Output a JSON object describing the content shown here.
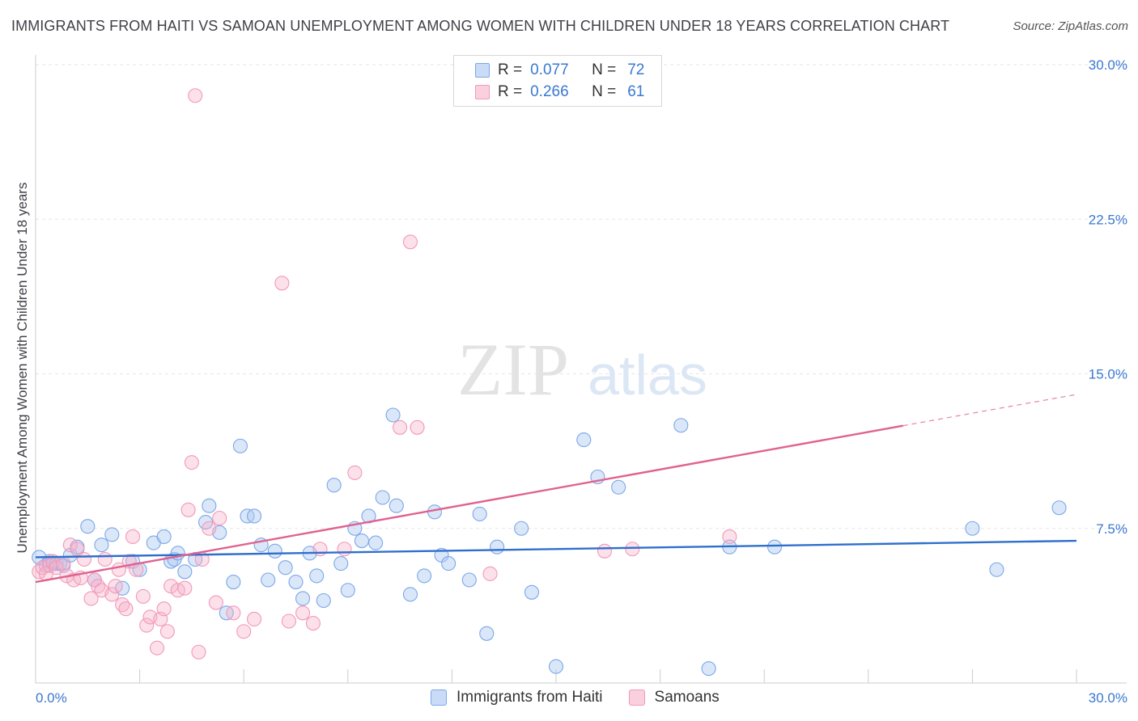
{
  "header": {
    "title": "IMMIGRANTS FROM HAITI VS SAMOAN UNEMPLOYMENT AMONG WOMEN WITH CHILDREN UNDER 18 YEARS CORRELATION CHART",
    "source": "Source: ZipAtlas.com"
  },
  "watermark": {
    "zip": "ZIP",
    "atlas": "atlas"
  },
  "legend": {
    "r_label": "R =",
    "n_label": "N =",
    "items": [
      {
        "name": "Immigrants from Haiti",
        "r": "0.077",
        "n": "72",
        "color": "#7ba7e8"
      },
      {
        "name": "Samoans",
        "r": "0.266",
        "n": "61",
        "color": "#f19ab8"
      }
    ]
  },
  "chart_data": {
    "type": "scatter",
    "title": "IMMIGRANTS FROM HAITI VS SAMOAN UNEMPLOYMENT AMONG WOMEN WITH CHILDREN UNDER 18 YEARS CORRELATION CHART",
    "xlabel": "",
    "ylabel": "Unemployment Among Women with Children Under 18 years",
    "xlim": [
      0,
      30
    ],
    "ylim": [
      0,
      30
    ],
    "x_tick_labels": [
      "0.0%",
      "30.0%"
    ],
    "y_ticks": [
      7.5,
      15.0,
      22.5,
      30.0
    ],
    "y_tick_labels": [
      "7.5%",
      "15.0%",
      "22.5%",
      "30.0%"
    ],
    "grid": true,
    "legend_position": "top-center",
    "series": [
      {
        "name": "Immigrants from Haiti",
        "color": "#7ba7e8",
        "line_color": "#2f6fcc",
        "trend": {
          "x": [
            0,
            30
          ],
          "y": [
            6.1,
            6.9
          ]
        },
        "points": [
          [
            0.1,
            6.1
          ],
          [
            0.3,
            5.7
          ],
          [
            0.4,
            5.9
          ],
          [
            0.5,
            5.8
          ],
          [
            0.6,
            5.8
          ],
          [
            0.7,
            5.8
          ],
          [
            0.8,
            5.7
          ],
          [
            1.0,
            6.2
          ],
          [
            1.2,
            6.6
          ],
          [
            1.5,
            7.6
          ],
          [
            1.7,
            5.0
          ],
          [
            1.9,
            6.7
          ],
          [
            2.2,
            7.2
          ],
          [
            2.5,
            4.6
          ],
          [
            2.8,
            5.9
          ],
          [
            3.0,
            5.5
          ],
          [
            3.4,
            6.8
          ],
          [
            3.7,
            7.1
          ],
          [
            3.9,
            5.9
          ],
          [
            4.0,
            6.0
          ],
          [
            4.1,
            6.3
          ],
          [
            4.3,
            5.4
          ],
          [
            4.6,
            6.0
          ],
          [
            4.9,
            7.8
          ],
          [
            5.0,
            8.6
          ],
          [
            5.3,
            7.3
          ],
          [
            5.5,
            3.4
          ],
          [
            5.7,
            4.9
          ],
          [
            5.9,
            11.5
          ],
          [
            6.1,
            8.1
          ],
          [
            6.3,
            8.1
          ],
          [
            6.5,
            6.7
          ],
          [
            6.7,
            5.0
          ],
          [
            6.9,
            6.4
          ],
          [
            7.2,
            5.6
          ],
          [
            7.5,
            4.9
          ],
          [
            7.7,
            4.1
          ],
          [
            7.9,
            6.3
          ],
          [
            8.1,
            5.2
          ],
          [
            8.3,
            4.0
          ],
          [
            8.6,
            9.6
          ],
          [
            8.8,
            5.8
          ],
          [
            9.0,
            4.5
          ],
          [
            9.2,
            7.5
          ],
          [
            9.4,
            6.9
          ],
          [
            9.6,
            8.1
          ],
          [
            9.8,
            6.8
          ],
          [
            10.0,
            9.0
          ],
          [
            10.3,
            13.0
          ],
          [
            10.4,
            8.6
          ],
          [
            10.8,
            4.3
          ],
          [
            11.2,
            5.2
          ],
          [
            11.5,
            8.3
          ],
          [
            11.7,
            6.2
          ],
          [
            11.9,
            5.8
          ],
          [
            12.5,
            5.0
          ],
          [
            12.8,
            8.2
          ],
          [
            13.0,
            2.4
          ],
          [
            13.3,
            6.6
          ],
          [
            14.0,
            7.5
          ],
          [
            14.3,
            4.4
          ],
          [
            15.0,
            0.8
          ],
          [
            15.8,
            11.8
          ],
          [
            16.2,
            10.0
          ],
          [
            16.8,
            9.5
          ],
          [
            18.6,
            12.5
          ],
          [
            19.4,
            0.7
          ],
          [
            20.0,
            6.6
          ],
          [
            21.3,
            6.6
          ],
          [
            27.0,
            7.5
          ],
          [
            27.7,
            5.5
          ],
          [
            29.5,
            8.5
          ]
        ]
      },
      {
        "name": "Samoans",
        "color": "#f19ab8",
        "line_color": "#e0628f",
        "trend": {
          "x": [
            0,
            30
          ],
          "y": [
            4.9,
            14.0
          ],
          "solid_to": 25
        },
        "points": [
          [
            0.1,
            5.4
          ],
          [
            0.2,
            5.6
          ],
          [
            0.3,
            5.3
          ],
          [
            0.4,
            5.7
          ],
          [
            0.5,
            5.9
          ],
          [
            0.6,
            5.6
          ],
          [
            0.8,
            5.8
          ],
          [
            0.9,
            5.2
          ],
          [
            1.0,
            6.7
          ],
          [
            1.1,
            5.0
          ],
          [
            1.2,
            6.5
          ],
          [
            1.3,
            5.1
          ],
          [
            1.4,
            6.0
          ],
          [
            1.6,
            4.1
          ],
          [
            1.7,
            5.0
          ],
          [
            1.8,
            4.7
          ],
          [
            1.9,
            4.5
          ],
          [
            2.0,
            6.0
          ],
          [
            2.2,
            4.3
          ],
          [
            2.3,
            4.7
          ],
          [
            2.4,
            5.5
          ],
          [
            2.5,
            3.8
          ],
          [
            2.6,
            3.6
          ],
          [
            2.7,
            5.9
          ],
          [
            2.8,
            7.1
          ],
          [
            2.9,
            5.5
          ],
          [
            3.1,
            4.2
          ],
          [
            3.2,
            2.8
          ],
          [
            3.3,
            3.2
          ],
          [
            3.5,
            1.7
          ],
          [
            3.6,
            3.1
          ],
          [
            3.7,
            3.6
          ],
          [
            3.8,
            2.5
          ],
          [
            3.9,
            4.7
          ],
          [
            4.1,
            4.5
          ],
          [
            4.3,
            4.6
          ],
          [
            4.4,
            8.4
          ],
          [
            4.5,
            10.7
          ],
          [
            4.6,
            28.5
          ],
          [
            4.7,
            1.5
          ],
          [
            4.8,
            6.0
          ],
          [
            5.0,
            7.5
          ],
          [
            5.2,
            3.9
          ],
          [
            5.3,
            8.0
          ],
          [
            5.7,
            3.4
          ],
          [
            6.0,
            2.5
          ],
          [
            6.3,
            3.1
          ],
          [
            7.1,
            19.4
          ],
          [
            7.3,
            3.0
          ],
          [
            7.7,
            3.4
          ],
          [
            8.0,
            2.9
          ],
          [
            8.2,
            6.5
          ],
          [
            8.9,
            6.5
          ],
          [
            9.2,
            10.2
          ],
          [
            10.5,
            12.4
          ],
          [
            10.8,
            21.4
          ],
          [
            11.0,
            12.4
          ],
          [
            13.1,
            5.3
          ],
          [
            16.4,
            6.4
          ],
          [
            17.2,
            6.5
          ],
          [
            20.0,
            7.1
          ]
        ]
      }
    ]
  }
}
